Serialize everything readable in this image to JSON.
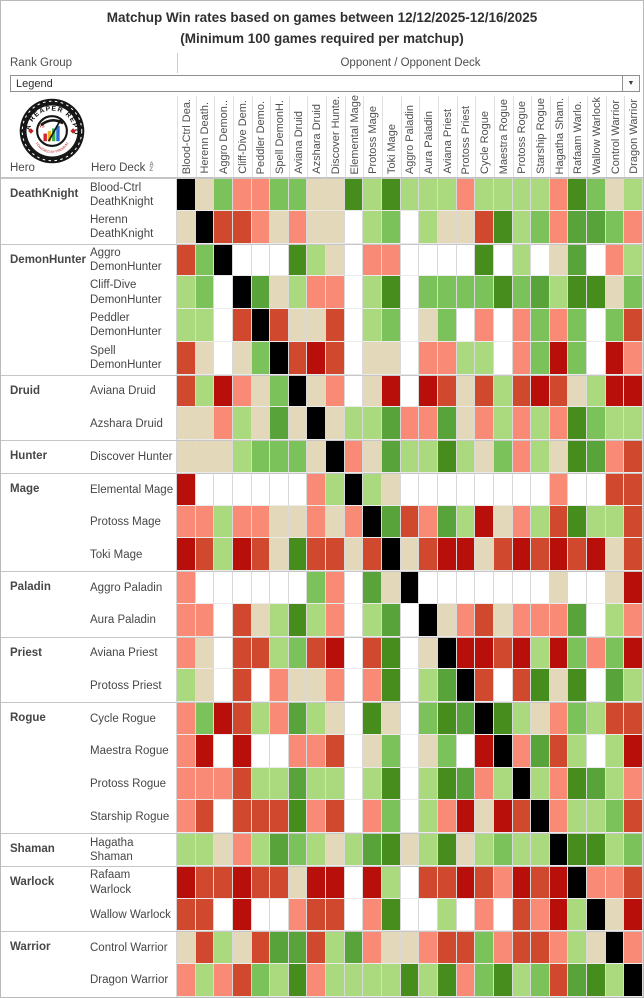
{
  "title": {
    "line1": "Matchup Win rates based on games between 12/12/2025-12/16/2025",
    "line2": "(Minimum 100 games required per matchup)"
  },
  "controls": {
    "rank_group_label": "Rank Group",
    "opponent_label": "Opponent  /  Opponent Deck",
    "legend_value": "Legend",
    "dropdown_caret_icon": "▼"
  },
  "logo": {
    "name": "data-reaper-report-logo",
    "ring_text": "DATA REAPER REPORT",
    "bar_colors": [
      "#d3262b",
      "#e9b424",
      "#3fae49",
      "#2a6fd6"
    ]
  },
  "table": {
    "hero_label": "Hero",
    "hero_deck_label": "Hero Deck",
    "sort_icon": "AZ",
    "columns": [
      "Blood-Ctrl Dea.",
      "Herenn Death.",
      "Aggro Demon..",
      "Cliff-Dive Dem.",
      "Peddler Demo.",
      "Spell DemonH.",
      "Aviana Druid",
      "Azshara Druid",
      "Discover Hunte.",
      "Elemental Mage",
      "Protoss Mage",
      "Toki Mage",
      "Aggro Paladin",
      "Aura Paladin",
      "Aviana Priest",
      "Protoss Priest",
      "Cycle Rogue",
      "Maestra Rogue",
      "Protoss Rogue",
      "Starship Rogue",
      "Hagatha Sham.",
      "Rafaam Warlo.",
      "Wallow Warlock",
      "Control Warrior",
      "Dragon Warrior"
    ],
    "groups": [
      {
        "hero": "DeathKnight",
        "decks": [
          "Blood-Ctrl DeathKnight",
          "Herenn DeathKnight"
        ]
      },
      {
        "hero": "DemonHunter",
        "decks": [
          "Aggro DemonHunter",
          "Cliff-Dive DemonHunter",
          "Peddler DemonHunter",
          "Spell DemonHunter"
        ]
      },
      {
        "hero": "Druid",
        "decks": [
          "Aviana Druid",
          "Azshara Druid"
        ]
      },
      {
        "hero": "Hunter",
        "decks": [
          "Discover Hunter"
        ]
      },
      {
        "hero": "Mage",
        "decks": [
          "Elemental Mage",
          "Protoss Mage",
          "Toki Mage"
        ]
      },
      {
        "hero": "Paladin",
        "decks": [
          "Aggro Paladin",
          "Aura Paladin"
        ]
      },
      {
        "hero": "Priest",
        "decks": [
          "Aviana Priest",
          "Protoss Priest"
        ]
      },
      {
        "hero": "Rogue",
        "decks": [
          "Cycle Rogue",
          "Maestra Rogue",
          "Protoss Rogue",
          "Starship Rogue"
        ]
      },
      {
        "hero": "Shaman",
        "decks": [
          "Hagatha Shaman"
        ]
      },
      {
        "hero": "Warlock",
        "decks": [
          "Rafaam Warlock",
          "Wallow Warlock"
        ]
      },
      {
        "hero": "Warrior",
        "decks": [
          "Control Warrior",
          "Dragon Warrior"
        ]
      }
    ]
  },
  "chart_data": {
    "type": "heatmap",
    "title": "Matchup Win rates based on games between 12/12/2025-12/16/2025 (Minimum 100 games required per matchup)",
    "x_axis_label": "Opponent / Opponent Deck",
    "y_axis_label": "Hero / Hero Deck",
    "x_categories": [
      "Blood-Ctrl DeathKnight",
      "Herenn DeathKnight",
      "Aggro DemonHunter",
      "Cliff-Dive DemonHunter",
      "Peddler DemonHunter",
      "Spell DemonHunter",
      "Aviana Druid",
      "Azshara Druid",
      "Discover Hunter",
      "Elemental Mage",
      "Protoss Mage",
      "Toki Mage",
      "Aggro Paladin",
      "Aura Paladin",
      "Aviana Priest",
      "Protoss Priest",
      "Cycle Rogue",
      "Maestra Rogue",
      "Protoss Rogue",
      "Starship Rogue",
      "Hagatha Shaman",
      "Rafaam Warlock",
      "Wallow Warlock",
      "Control Warrior",
      "Dragon Warrior"
    ],
    "y_categories": [
      "Blood-Ctrl DeathKnight",
      "Herenn DeathKnight",
      "Aggro DemonHunter",
      "Cliff-Dive DemonHunter",
      "Peddler DemonHunter",
      "Spell DemonHunter",
      "Aviana Druid",
      "Azshara Druid",
      "Discover Hunter",
      "Elemental Mage",
      "Protoss Mage",
      "Toki Mage",
      "Aggro Paladin",
      "Aura Paladin",
      "Aviana Priest",
      "Protoss Priest",
      "Cycle Rogue",
      "Maestra Rogue",
      "Protoss Rogue",
      "Starship Rogue",
      "Hagatha Shaman",
      "Rafaam Warlock",
      "Wallow Warlock",
      "Control Warrior",
      "Dragon Warrior"
    ],
    "cell_codes": [
      "KDFCCFFDDHEHEEECEEEECHFDE",
      "DKBBCDCDDWEFWEDDBHEFCGGFC",
      "BFKWWWHEDWCCWWWWHWEWDGWCE",
      "EFWKGDECCWEHWFFFFHFGEHHDF",
      "EEWBKBDDBWEFWDFWCWCFCFWFB",
      "BDWDFKBABWDDWCCEEWCFAFWAC",
      "BEACDFKDCWDAWABDBEBABDEAA",
      "DDCEDGDKDEEGCCGDCECECHFEE",
      "DDDEFFFDKCDGEEHEDFCEDHGCB",
      "AWWWWWWCEKEDWWWWWWWWCWWBB",
      "CCECCDDCDCKGBCGEADCEBHEEB",
      "ABEABDHBBDBKDBAADBABABADB",
      "CWWWWWWFCWGDKWWWWWWWDWWDA",
      "CCWBDEHECWEGWKDCBDCCCGWEC",
      "CDWBBEFBAWBHWDKAABAEAFCFA",
      "EDWBWCDDCWCHWEGKBWBHDHWGE",
      "CFABECGEDWHDWFHGKHEDCFEBB",
      "CAWAWWCCBWDFWDFWAKCGBEWEA",
      "CCCBEEGEEWEHWEHGCEKECHGEC",
      "CBWBBBHCBWCFWECADABKCEEFB",
      "EEDCEGFEDEGHDEHDEFEEKHHEF",
      "ABBABBDAAWAEWBBABCABAKCCB",
      "BBWAWWCBBWCHWWEWCWBCAEKDA",
      "DBEDBGGBEGCDDCBBFCBBCEDKC",
      "CECBFEHCEEEEHEHCFHEFBGHEK"
    ],
    "code_legend": {
      "A": "heavily unfavored (dark red)",
      "B": "unfavored (red)",
      "C": "slightly unfavored (salmon)",
      "D": "roughly even (beige)",
      "E": "slightly favored (light green)",
      "F": "favored (medium green)",
      "G": "well favored (deep green)",
      "H": "heavily favored (dark green)",
      "K": "mirror matchup (black)",
      "W": "under 100 games / no data (white)"
    },
    "palette": {
      "A": "#b80f0b",
      "B": "#d0492f",
      "C": "#f98a75",
      "D": "#e3d8ba",
      "E": "#abd97e",
      "F": "#7cc25a",
      "G": "#58a43b",
      "H": "#478d1e",
      "K": "#000000",
      "W": "#ffffff"
    },
    "legend_position": "collapsed dropdown labeled Legend",
    "grid": true
  }
}
